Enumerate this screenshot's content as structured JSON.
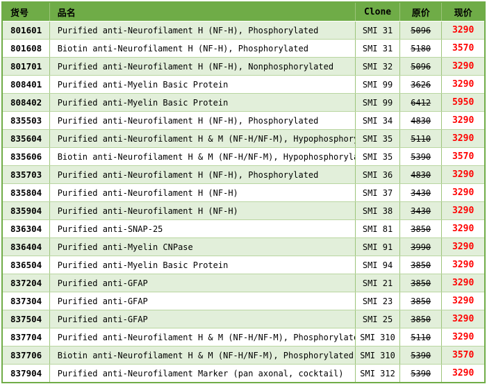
{
  "colors": {
    "header_green": "#6FAC47",
    "row_alt_green": "#E2EFDA",
    "grid_green": "#9CC47A",
    "price_red": "#FF0000"
  },
  "table": {
    "headers": {
      "code": "货号",
      "name": "品名",
      "clone": "Clone",
      "original_price": "原价",
      "current_price": "现价"
    },
    "rows": [
      {
        "code": "801601",
        "name": "Purified anti-Neurofilament H (NF-H), Phosphorylated",
        "clone": "SMI 31",
        "original_price": "5096",
        "current_price": "3290"
      },
      {
        "code": "801608",
        "name": "Biotin anti-Neurofilament H (NF-H), Phosphorylated",
        "clone": "SMI 31",
        "original_price": "5180",
        "current_price": "3570"
      },
      {
        "code": "801701",
        "name": "Purified anti-Neurofilament H (NF-H), Nonphosphorylated",
        "clone": "SMI 32",
        "original_price": "5096",
        "current_price": "3290"
      },
      {
        "code": "808401",
        "name": "Purified anti-Myelin Basic Protein",
        "clone": "SMI 99",
        "original_price": "3626",
        "current_price": "3290"
      },
      {
        "code": "808402",
        "name": "Purified anti-Myelin Basic Protein",
        "clone": "SMI 99",
        "original_price": "6412",
        "current_price": "5950"
      },
      {
        "code": "835503",
        "name": "Purified anti-Neurofilament H (NF-H), Phosphorylated",
        "clone": "SMI 34",
        "original_price": "4830",
        "current_price": "3290"
      },
      {
        "code": "835604",
        "name": "Purified anti-Neurofilament H & M (NF-H/NF-M), Hypophosphorylated",
        "clone": "SMI 35",
        "original_price": "5110",
        "current_price": "3290"
      },
      {
        "code": "835606",
        "name": "Biotin anti-Neurofilament H & M (NF-H/NF-M), Hypophosphorylated",
        "clone": "SMI 35",
        "original_price": "5390",
        "current_price": "3570"
      },
      {
        "code": "835703",
        "name": "Purified anti-Neurofilament H (NF-H), Phosphorylated",
        "clone": "SMI 36",
        "original_price": "4830",
        "current_price": "3290"
      },
      {
        "code": "835804",
        "name": "Purified anti-Neurofilament H (NF-H)",
        "clone": "SMI 37",
        "original_price": "3430",
        "current_price": "3290"
      },
      {
        "code": "835904",
        "name": "Purified anti-Neurofilament H (NF-H)",
        "clone": "SMI 38",
        "original_price": "3430",
        "current_price": "3290"
      },
      {
        "code": "836304",
        "name": "Purified anti-SNAP-25",
        "clone": "SMI 81",
        "original_price": "3850",
        "current_price": "3290"
      },
      {
        "code": "836404",
        "name": "Purified anti-Myelin CNPase",
        "clone": "SMI 91",
        "original_price": "3990",
        "current_price": "3290"
      },
      {
        "code": "836504",
        "name": "Purified anti-Myelin Basic Protein",
        "clone": "SMI 94",
        "original_price": "3850",
        "current_price": "3290"
      },
      {
        "code": "837204",
        "name": "Purified anti-GFAP",
        "clone": "SMI 21",
        "original_price": "3850",
        "current_price": "3290"
      },
      {
        "code": "837304",
        "name": "Purified anti-GFAP",
        "clone": "SMI 23",
        "original_price": "3850",
        "current_price": "3290"
      },
      {
        "code": "837504",
        "name": "Purified anti-GFAP",
        "clone": "SMI 25",
        "original_price": "3850",
        "current_price": "3290"
      },
      {
        "code": "837704",
        "name": "Purified anti-Neurofilament H & M (NF-H/NF-M), Phosphorylated",
        "clone": "SMI 310",
        "original_price": "5110",
        "current_price": "3290"
      },
      {
        "code": "837706",
        "name": "Biotin anti-Neurofilament H & M (NF-H/NF-M), Phosphorylated",
        "clone": "SMI 310",
        "original_price": "5390",
        "current_price": "3570"
      },
      {
        "code": "837904",
        "name": "Purified anti-Neurofilament Marker (pan axonal, cocktail)",
        "clone": "SMI 312",
        "original_price": "5390",
        "current_price": "3290"
      }
    ]
  }
}
